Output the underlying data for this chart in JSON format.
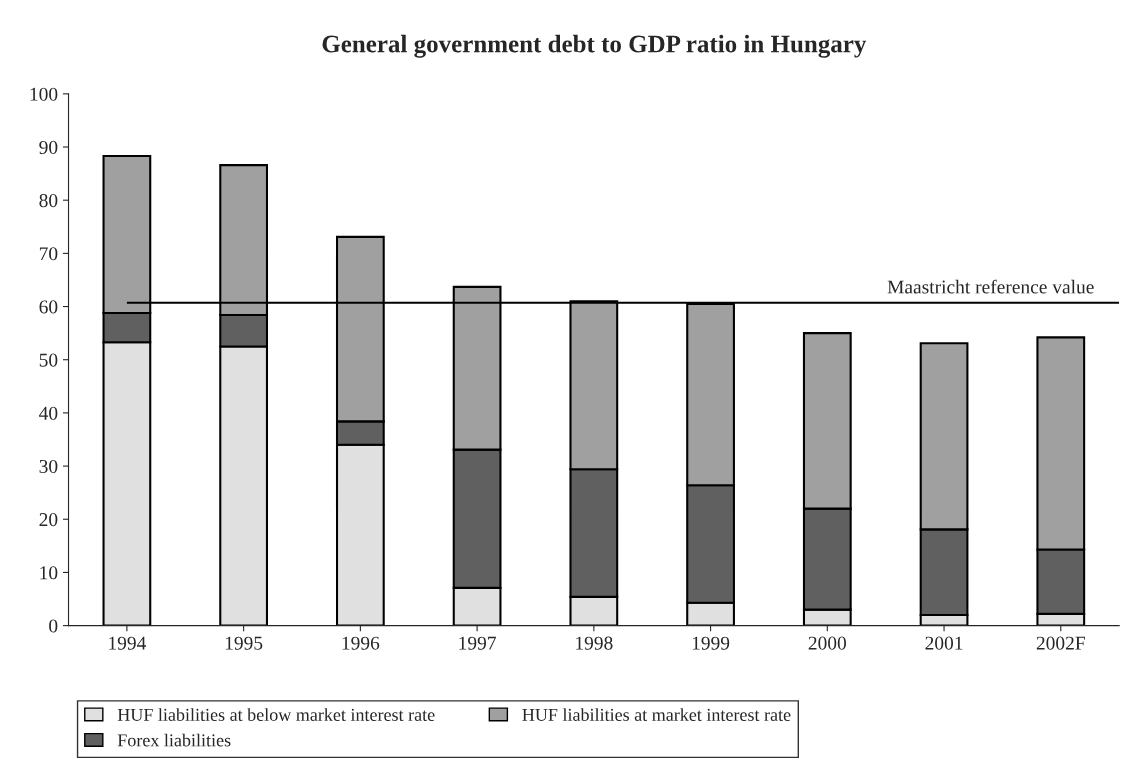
{
  "chart_data": {
    "type": "bar",
    "title": "General government debt to GDP ratio in Hungary",
    "categories": [
      "1994",
      "1995",
      "1996",
      "1997",
      "1998",
      "1999",
      "2000",
      "2001",
      "2002F"
    ],
    "stacked": true,
    "series": [
      {
        "name": "HUF liabilities at below market interest rate",
        "color": "#e0e0e0",
        "values": [
          53.3,
          52.5,
          34.0,
          7.1,
          5.4,
          4.3,
          3.0,
          2.0,
          2.2
        ]
      },
      {
        "name": "Forex liabilities",
        "color": "#606060",
        "values": [
          5.5,
          5.9,
          4.4,
          26.0,
          24.0,
          22.1,
          19.0,
          16.1,
          12.1
        ]
      },
      {
        "name": "HUF liabilities at market interest rate",
        "color": "#a0a0a0",
        "values": [
          29.5,
          28.2,
          34.7,
          30.6,
          31.6,
          34.1,
          33.0,
          35.0,
          39.9
        ]
      }
    ],
    "ylim": [
      0,
      100
    ],
    "yticks": [
      0,
      10,
      20,
      30,
      40,
      50,
      60,
      70,
      80,
      90,
      100
    ],
    "ref_lines": [
      {
        "axis": "y",
        "value": 60.7,
        "label": "Maastricht reference value",
        "color": "#000000"
      }
    ],
    "legend": "bottom",
    "grid": false
  }
}
